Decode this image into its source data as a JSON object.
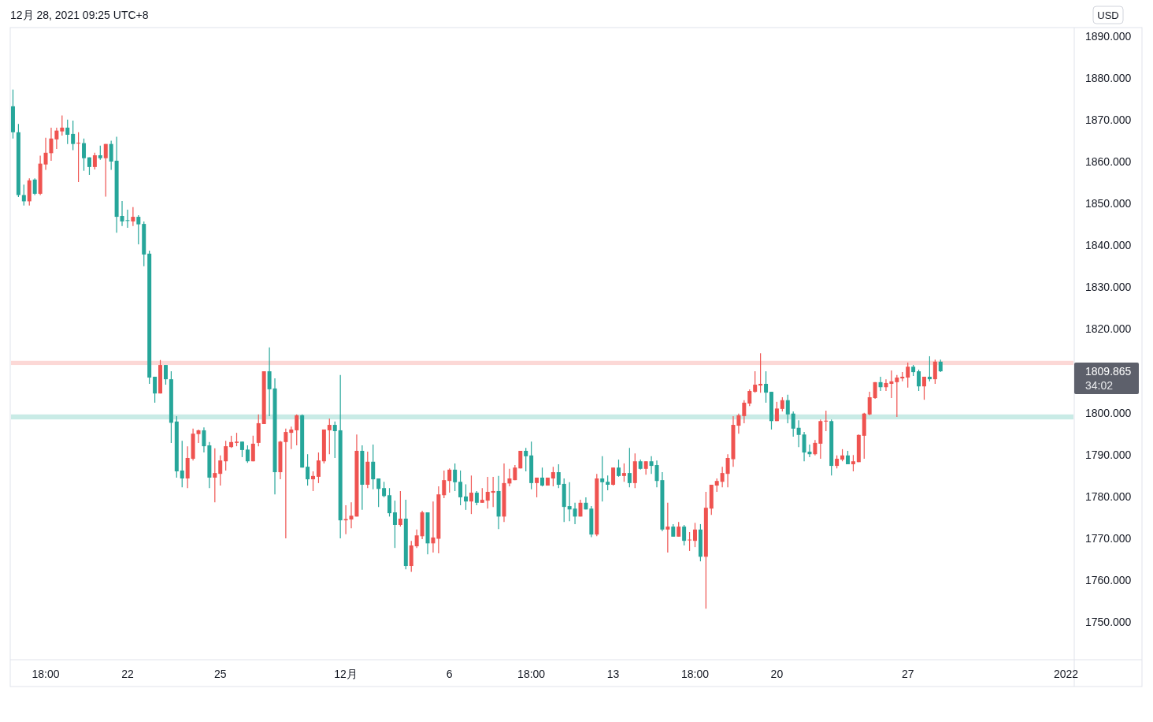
{
  "chart_data": {
    "type": "candlestick",
    "annotations": [
      "12月 28, 2021 09:25 UTC+8",
      "USD",
      "1809.865",
      "34:02"
    ],
    "categories": [
      null,
      null,
      null,
      null,
      null,
      null,
      "18:00",
      null,
      null,
      null,
      null,
      null,
      null,
      null,
      null,
      null,
      null,
      null,
      null,
      null,
      null,
      "22",
      null,
      null,
      null,
      null,
      null,
      null,
      null,
      null,
      null,
      null,
      null,
      null,
      null,
      null,
      null,
      null,
      "25",
      null,
      null,
      null,
      null,
      null,
      null,
      null,
      null,
      null,
      null,
      null,
      null,
      null,
      null,
      null,
      null,
      null,
      null,
      null,
      null,
      null,
      null,
      "12月",
      null,
      null,
      null,
      null,
      null,
      null,
      null,
      null,
      null,
      null,
      null,
      null,
      null,
      null,
      null,
      null,
      null,
      null,
      "6",
      null,
      null,
      null,
      null,
      null,
      null,
      null,
      null,
      null,
      null,
      null,
      null,
      null,
      null,
      "18:00",
      null,
      null,
      null,
      null,
      null,
      null,
      null,
      null,
      null,
      null,
      null,
      null,
      null,
      null,
      "13",
      null,
      null,
      null,
      null,
      null,
      null,
      null,
      null,
      null,
      null,
      null,
      null,
      null,
      null,
      "18:00",
      null,
      null,
      null,
      null,
      null,
      null,
      null,
      null,
      null,
      null,
      null,
      null,
      null,
      null,
      "20",
      null,
      null,
      null,
      null,
      null,
      null,
      null,
      null,
      null,
      null,
      null,
      null,
      null,
      null,
      null,
      null,
      null,
      null,
      null,
      null,
      null,
      null,
      null,
      "27",
      null,
      null,
      null,
      null,
      null,
      null,
      null,
      null,
      null,
      null,
      null,
      null,
      null,
      null,
      null,
      null,
      null,
      null,
      null,
      null,
      null,
      null,
      null,
      null,
      null,
      null,
      null,
      null,
      "2022",
      null
    ],
    "ohlc": [
      [
        1873.2,
        1877.2,
        1865.5,
        1867.0
      ],
      [
        1867.0,
        1869.0,
        1851.5,
        1852.0
      ],
      [
        1852.0,
        1854.5,
        1849.5,
        1850.5
      ],
      [
        1850.5,
        1856.0,
        1849.5,
        1855.5
      ],
      [
        1855.7,
        1856.0,
        1852.0,
        1852.3
      ],
      [
        1852.3,
        1861.4,
        1852.0,
        1859.5
      ],
      [
        1859.3,
        1865.7,
        1858.0,
        1862.1
      ],
      [
        1862.0,
        1868.1,
        1860.2,
        1865.5
      ],
      [
        1865.3,
        1868.1,
        1863.0,
        1867.4
      ],
      [
        1867.2,
        1871.0,
        1866.2,
        1868.1
      ],
      [
        1868.1,
        1870.0,
        1864.2,
        1866.4
      ],
      [
        1866.6,
        1869.8,
        1862.7,
        1864.2
      ],
      [
        1864.3,
        1867.0,
        1855.1,
        1864.5
      ],
      [
        1864.4,
        1865.5,
        1857.8,
        1860.8
      ],
      [
        1861.0,
        1861.0,
        1856.8,
        1858.7
      ],
      [
        1858.7,
        1862.1,
        1858.1,
        1861.5
      ],
      [
        1861.5,
        1863.8,
        1860.4,
        1860.8
      ],
      [
        1860.8,
        1864.2,
        1851.6,
        1864.2
      ],
      [
        1864.2,
        1865.0,
        1858.0,
        1860.0
      ],
      [
        1860.2,
        1865.9,
        1843.0,
        1846.8
      ],
      [
        1847.0,
        1850.6,
        1844.6,
        1845.7
      ],
      [
        1846.0,
        1848.5,
        1844.2,
        1845.9
      ],
      [
        1845.7,
        1849.1,
        1844.6,
        1846.8
      ],
      [
        1846.8,
        1847.2,
        1840.2,
        1845.0
      ],
      [
        1845.1,
        1845.7,
        1835.0,
        1837.8
      ],
      [
        1838.0,
        1838.7,
        1806.9,
        1808.4
      ],
      [
        1808.6,
        1808.6,
        1802.4,
        1804.6
      ],
      [
        1804.6,
        1812.6,
        1804.6,
        1811.4
      ],
      [
        1811.4,
        1811.4,
        1806.7,
        1808.0
      ],
      [
        1808.0,
        1809.9,
        1792.8,
        1797.6
      ],
      [
        1797.9,
        1799.2,
        1784.5,
        1786.0
      ],
      [
        1786.2,
        1793.3,
        1782.2,
        1784.3
      ],
      [
        1784.3,
        1792.0,
        1782.0,
        1789.2
      ],
      [
        1789.0,
        1796.2,
        1788.6,
        1795.0
      ],
      [
        1794.9,
        1796.0,
        1792.8,
        1795.8
      ],
      [
        1795.8,
        1796.5,
        1790.5,
        1792.0
      ],
      [
        1792.2,
        1793.0,
        1782.0,
        1784.5
      ],
      [
        1784.5,
        1791.5,
        1778.6,
        1785.6
      ],
      [
        1785.4,
        1789.8,
        1782.6,
        1788.6
      ],
      [
        1788.4,
        1793.3,
        1786.2,
        1792.0
      ],
      [
        1791.8,
        1794.5,
        1791.6,
        1793.0
      ],
      [
        1792.8,
        1795.2,
        1792.0,
        1793.1
      ],
      [
        1793.1,
        1793.1,
        1789.4,
        1791.1
      ],
      [
        1791.2,
        1792.2,
        1788.0,
        1788.4
      ],
      [
        1788.4,
        1794.5,
        1788.4,
        1792.6
      ],
      [
        1792.8,
        1799.6,
        1792.0,
        1797.5
      ],
      [
        1797.3,
        1809.9,
        1797.3,
        1809.9
      ],
      [
        1809.9,
        1815.6,
        1799.2,
        1805.6
      ],
      [
        1805.8,
        1808.2,
        1780.5,
        1785.8
      ],
      [
        1785.8,
        1793.3,
        1784.1,
        1793.1
      ],
      [
        1793.0,
        1796.2,
        1770.0,
        1795.4
      ],
      [
        1795.2,
        1796.7,
        1791.3,
        1796.0
      ],
      [
        1795.8,
        1799.6,
        1792.2,
        1799.4
      ],
      [
        1799.4,
        1799.6,
        1786.9,
        1786.9
      ],
      [
        1787.1,
        1790.1,
        1782.6,
        1784.1
      ],
      [
        1784.1,
        1786.0,
        1781.3,
        1784.9
      ],
      [
        1784.7,
        1790.5,
        1783.2,
        1788.6
      ],
      [
        1788.4,
        1796.0,
        1787.9,
        1796.0
      ],
      [
        1795.8,
        1798.6,
        1790.1,
        1797.1
      ],
      [
        1797.1,
        1797.9,
        1789.2,
        1795.6
      ],
      [
        1795.8,
        1809.0,
        1770.0,
        1774.3
      ],
      [
        1774.3,
        1777.9,
        1771.0,
        1774.6
      ],
      [
        1774.5,
        1778.6,
        1772.4,
        1775.4
      ],
      [
        1775.2,
        1794.8,
        1775.2,
        1790.9
      ],
      [
        1790.9,
        1792.2,
        1776.8,
        1782.8
      ],
      [
        1782.8,
        1790.7,
        1782.0,
        1788.3
      ],
      [
        1788.3,
        1792.4,
        1781.7,
        1784.1
      ],
      [
        1784.3,
        1784.3,
        1777.5,
        1781.8
      ],
      [
        1782.0,
        1783.5,
        1779.8,
        1780.1
      ],
      [
        1780.3,
        1782.0,
        1775.2,
        1776.0
      ],
      [
        1776.2,
        1779.0,
        1767.7,
        1773.2
      ],
      [
        1773.2,
        1781.3,
        1772.8,
        1774.7
      ],
      [
        1774.7,
        1779.2,
        1762.6,
        1763.4
      ],
      [
        1763.4,
        1769.4,
        1762.0,
        1768.3
      ],
      [
        1768.1,
        1772.1,
        1767.7,
        1770.7
      ],
      [
        1770.5,
        1776.6,
        1769.8,
        1776.2
      ],
      [
        1776.2,
        1776.2,
        1766.2,
        1768.8
      ],
      [
        1768.8,
        1778.8,
        1766.6,
        1770.2
      ],
      [
        1769.9,
        1782.4,
        1766.4,
        1780.5
      ],
      [
        1780.3,
        1786.2,
        1779.6,
        1783.9
      ],
      [
        1783.7,
        1786.7,
        1780.9,
        1786.4
      ],
      [
        1786.4,
        1787.9,
        1781.3,
        1783.4
      ],
      [
        1783.5,
        1786.2,
        1777.9,
        1779.8
      ],
      [
        1780.0,
        1782.9,
        1776.8,
        1778.8
      ],
      [
        1778.8,
        1785.0,
        1775.8,
        1780.9
      ],
      [
        1780.9,
        1781.3,
        1777.9,
        1778.5
      ],
      [
        1778.5,
        1782.0,
        1778.5,
        1779.2
      ],
      [
        1779.0,
        1784.7,
        1777.1,
        1781.1
      ],
      [
        1780.9,
        1784.7,
        1777.5,
        1781.3
      ],
      [
        1781.3,
        1784.9,
        1772.2,
        1775.2
      ],
      [
        1775.2,
        1787.9,
        1773.9,
        1783.2
      ],
      [
        1783.1,
        1786.6,
        1782.4,
        1784.3
      ],
      [
        1783.9,
        1787.5,
        1783.9,
        1786.9
      ],
      [
        1786.7,
        1790.9,
        1786.7,
        1790.9
      ],
      [
        1790.9,
        1791.6,
        1786.0,
        1789.6
      ],
      [
        1789.8,
        1793.1,
        1781.7,
        1783.2
      ],
      [
        1783.2,
        1784.5,
        1779.8,
        1784.5
      ],
      [
        1784.5,
        1786.9,
        1782.4,
        1782.6
      ],
      [
        1782.6,
        1784.5,
        1782.6,
        1784.5
      ],
      [
        1784.3,
        1787.1,
        1782.4,
        1785.8
      ],
      [
        1785.8,
        1787.7,
        1782.0,
        1782.8
      ],
      [
        1783.0,
        1784.3,
        1773.9,
        1777.5
      ],
      [
        1777.7,
        1783.4,
        1774.1,
        1776.9
      ],
      [
        1777.1,
        1778.5,
        1773.4,
        1775.2
      ],
      [
        1775.2,
        1779.2,
        1775.2,
        1778.5
      ],
      [
        1778.5,
        1779.8,
        1776.9,
        1776.9
      ],
      [
        1777.1,
        1777.7,
        1770.3,
        1770.9
      ],
      [
        1770.9,
        1785.4,
        1770.5,
        1784.3
      ],
      [
        1784.3,
        1789.6,
        1778.8,
        1783.4
      ],
      [
        1783.5,
        1785.0,
        1781.5,
        1782.8
      ],
      [
        1782.8,
        1786.9,
        1782.6,
        1786.9
      ],
      [
        1786.9,
        1788.8,
        1784.7,
        1784.9
      ],
      [
        1784.9,
        1787.9,
        1783.5,
        1785.6
      ],
      [
        1785.6,
        1791.6,
        1782.2,
        1783.2
      ],
      [
        1783.2,
        1790.3,
        1782.0,
        1788.4
      ],
      [
        1788.4,
        1788.8,
        1786.4,
        1786.6
      ],
      [
        1786.6,
        1788.4,
        1785.2,
        1788.4
      ],
      [
        1788.4,
        1789.6,
        1785.4,
        1787.3
      ],
      [
        1787.5,
        1788.6,
        1782.2,
        1783.7
      ],
      [
        1783.9,
        1785.8,
        1771.7,
        1772.1
      ],
      [
        1772.1,
        1778.5,
        1766.6,
        1772.8
      ],
      [
        1772.8,
        1773.4,
        1770.4,
        1770.4
      ],
      [
        1770.4,
        1773.9,
        1770.4,
        1772.8
      ],
      [
        1772.8,
        1773.2,
        1768.3,
        1769.4
      ],
      [
        1769.6,
        1771.5,
        1767.0,
        1769.7
      ],
      [
        1769.4,
        1773.7,
        1767.9,
        1772.1
      ],
      [
        1772.1,
        1773.4,
        1764.5,
        1765.6
      ],
      [
        1765.6,
        1781.1,
        1753.2,
        1777.3
      ],
      [
        1777.1,
        1782.8,
        1775.6,
        1782.8
      ],
      [
        1782.6,
        1784.3,
        1781.1,
        1783.7
      ],
      [
        1783.5,
        1787.1,
        1782.2,
        1785.6
      ],
      [
        1785.4,
        1790.1,
        1782.2,
        1789.2
      ],
      [
        1788.9,
        1799.2,
        1787.1,
        1797.1
      ],
      [
        1796.9,
        1799.8,
        1795.0,
        1799.4
      ],
      [
        1799.2,
        1803.0,
        1797.5,
        1802.4
      ],
      [
        1802.2,
        1805.6,
        1801.6,
        1805.2
      ],
      [
        1805.0,
        1809.9,
        1804.8,
        1806.7
      ],
      [
        1806.5,
        1814.2,
        1804.8,
        1806.9
      ],
      [
        1806.9,
        1809.9,
        1802.4,
        1804.8
      ],
      [
        1805.0,
        1805.0,
        1796.0,
        1798.0
      ],
      [
        1798.0,
        1802.6,
        1798.0,
        1801.0
      ],
      [
        1800.9,
        1803.7,
        1800.3,
        1803.0
      ],
      [
        1803.0,
        1804.3,
        1797.5,
        1799.6
      ],
      [
        1799.8,
        1800.3,
        1794.3,
        1796.2
      ],
      [
        1796.4,
        1798.2,
        1791.8,
        1794.7
      ],
      [
        1794.8,
        1795.4,
        1788.4,
        1790.5
      ],
      [
        1790.7,
        1792.4,
        1789.4,
        1790.1
      ],
      [
        1790.1,
        1793.5,
        1789.8,
        1792.8
      ],
      [
        1792.6,
        1798.4,
        1789.0,
        1798.0
      ],
      [
        1797.9,
        1800.5,
        1795.6,
        1798.1
      ],
      [
        1798.0,
        1798.4,
        1785.0,
        1787.3
      ],
      [
        1787.3,
        1789.8,
        1786.7,
        1789.0
      ],
      [
        1788.8,
        1791.3,
        1788.4,
        1789.8
      ],
      [
        1789.8,
        1790.9,
        1787.7,
        1787.7
      ],
      [
        1787.7,
        1789.9,
        1786.0,
        1788.4
      ],
      [
        1788.2,
        1794.8,
        1788.2,
        1794.7
      ],
      [
        1794.5,
        1800.0,
        1789.0,
        1799.8
      ],
      [
        1799.6,
        1805.0,
        1799.4,
        1803.7
      ],
      [
        1803.5,
        1807.3,
        1803.3,
        1807.3
      ],
      [
        1807.3,
        1808.6,
        1805.2,
        1806.1
      ],
      [
        1806.1,
        1808.0,
        1805.2,
        1807.1
      ],
      [
        1806.9,
        1810.1,
        1803.5,
        1807.5
      ],
      [
        1807.3,
        1809.0,
        1799.0,
        1808.4
      ],
      [
        1808.2,
        1809.7,
        1807.5,
        1808.6
      ],
      [
        1808.4,
        1812.0,
        1806.0,
        1811.0
      ],
      [
        1811.0,
        1811.4,
        1808.8,
        1809.7
      ],
      [
        1809.9,
        1810.3,
        1805.2,
        1806.3
      ],
      [
        1806.3,
        1808.6,
        1803.1,
        1808.6
      ],
      [
        1808.6,
        1813.5,
        1807.5,
        1808.0
      ],
      [
        1808.0,
        1812.7,
        1806.9,
        1812.2
      ],
      [
        1812.2,
        1812.7,
        1809.7,
        1809.9
      ],
      null,
      null,
      null,
      null,
      null,
      null,
      null,
      null,
      null,
      null,
      null,
      null,
      null,
      null,
      null,
      null,
      null,
      null,
      null,
      null,
      null,
      null,
      null,
      null
    ],
    "colors": [
      "#26a69a",
      "#26a69a",
      "#26a69a",
      "#ef5350",
      "#26a69a",
      "#ef5350",
      "#ef5350",
      "#ef5350",
      "#ef5350",
      "#ef5350",
      "#26a69a",
      "#26a69a",
      "#ef5350",
      "#26a69a",
      "#26a69a",
      "#ef5350",
      "#26a69a",
      "#ef5350",
      "#26a69a",
      "#26a69a",
      "#26a69a",
      "#26a69a",
      "#ef5350",
      "#26a69a",
      "#26a69a",
      "#26a69a",
      "#26a69a",
      "#ef5350",
      "#26a69a",
      "#26a69a",
      "#26a69a",
      "#26a69a",
      "#ef5350",
      "#ef5350",
      "#ef5350",
      "#26a69a",
      "#26a69a",
      "#ef5350",
      "#ef5350",
      "#ef5350",
      "#ef5350",
      "#ef5350",
      "#26a69a",
      "#26a69a",
      "#ef5350",
      "#ef5350",
      "#ef5350",
      "#26a69a",
      "#26a69a",
      "#ef5350",
      "#ef5350",
      "#ef5350",
      "#ef5350",
      "#26a69a",
      "#26a69a",
      "#ef5350",
      "#ef5350",
      "#ef5350",
      "#ef5350",
      "#26a69a",
      "#26a69a",
      "#ef5350",
      "#ef5350",
      "#ef5350",
      "#26a69a",
      "#ef5350",
      "#26a69a",
      "#26a69a",
      "#26a69a",
      "#26a69a",
      "#26a69a",
      "#ef5350",
      "#26a69a",
      "#ef5350",
      "#ef5350",
      "#ef5350",
      "#26a69a",
      "#ef5350",
      "#ef5350",
      "#ef5350",
      "#ef5350",
      "#26a69a",
      "#26a69a",
      "#26a69a",
      "#ef5350",
      "#26a69a",
      "#ef5350",
      "#ef5350",
      "#ef5350",
      "#26a69a",
      "#ef5350",
      "#ef5350",
      "#ef5350",
      "#ef5350",
      "#26a69a",
      "#26a69a",
      "#ef5350",
      "#26a69a",
      "#ef5350",
      "#ef5350",
      "#26a69a",
      "#26a69a",
      "#26a69a",
      "#26a69a",
      "#ef5350",
      "#26a69a",
      "#26a69a",
      "#ef5350",
      "#26a69a",
      "#26a69a",
      "#ef5350",
      "#26a69a",
      "#ef5350",
      "#26a69a",
      "#ef5350",
      "#26a69a",
      "#ef5350",
      "#26a69a",
      "#26a69a",
      "#26a69a",
      "#ef5350",
      "#26a69a",
      "#ef5350",
      "#26a69a",
      "#ef5350",
      "#ef5350",
      "#26a69a",
      "#ef5350",
      "#ef5350",
      "#ef5350",
      "#ef5350",
      "#ef5350",
      "#ef5350",
      "#ef5350",
      "#ef5350",
      "#ef5350",
      "#ef5350",
      "#ef5350",
      "#26a69a",
      "#26a69a",
      "#ef5350",
      "#ef5350",
      "#26a69a",
      "#26a69a",
      "#26a69a",
      "#26a69a",
      "#26a69a",
      "#ef5350",
      "#ef5350",
      "#ef5350",
      "#26a69a",
      "#ef5350",
      "#ef5350",
      "#26a69a",
      "#ef5350",
      "#ef5350",
      "#ef5350",
      "#ef5350",
      "#ef5350",
      "#26a69a",
      "#ef5350",
      "#ef5350",
      "#ef5350",
      "#ef5350",
      "#ef5350",
      "#26a69a",
      "#26a69a",
      "#ef5350",
      "#26a69a",
      "#ef5350",
      "#26a69a",
      null,
      null,
      null,
      null,
      null,
      null,
      null,
      null,
      null,
      null,
      null,
      null,
      null,
      null,
      null,
      null,
      null,
      null,
      null,
      null,
      null,
      null,
      null,
      null
    ],
    "ylim": [
      1741,
      1892
    ],
    "yticks": [
      {
        "value": 1750,
        "label": "1750.000"
      },
      {
        "value": 1760,
        "label": "1760.000"
      },
      {
        "value": 1770,
        "label": "1770.000"
      },
      {
        "value": 1780,
        "label": "1780.000"
      },
      {
        "value": 1790,
        "label": "1790.000"
      },
      {
        "value": 1800,
        "label": "1800.000"
      },
      {
        "value": 1820,
        "label": "1820.000"
      },
      {
        "value": 1830,
        "label": "1830.000"
      },
      {
        "value": 1840,
        "label": "1840.000"
      },
      {
        "value": 1850,
        "label": "1850.000"
      },
      {
        "value": 1860,
        "label": "1860.000"
      },
      {
        "value": 1870,
        "label": "1870.000"
      },
      {
        "value": 1880,
        "label": "1880.000"
      },
      {
        "value": 1890,
        "label": "1890.000"
      }
    ],
    "bands": [
      {
        "axis": "y",
        "from": 1811.4,
        "to": 1812.4,
        "color": "#fcd8d6"
      },
      {
        "axis": "y",
        "from": 1798.4,
        "to": 1799.6,
        "color": "#c9ebe6"
      }
    ]
  }
}
